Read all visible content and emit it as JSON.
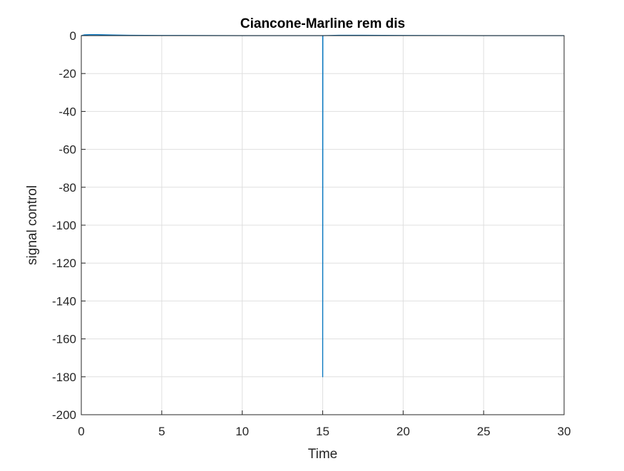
{
  "chart_data": {
    "type": "line",
    "title": "Ciancone-Marline rem dis",
    "xlabel": "Time",
    "ylabel": "signal control",
    "xlim": [
      0,
      30
    ],
    "ylim": [
      -200,
      0
    ],
    "xticks": [
      0,
      5,
      10,
      15,
      20,
      25,
      30
    ],
    "yticks": [
      0,
      -20,
      -40,
      -60,
      -80,
      -100,
      -120,
      -140,
      -160,
      -180,
      -200
    ],
    "grid": true,
    "line_color": "#0072BD",
    "series": [
      {
        "x": [
          0,
          0.2,
          0.5,
          1,
          2,
          3,
          5,
          10,
          14.99,
          15,
          15,
          15.01,
          16,
          20,
          25,
          30
        ],
        "values": [
          0,
          0.4,
          0.5,
          0.5,
          0.3,
          0.2,
          0.1,
          0,
          0,
          0,
          -180,
          0,
          0.2,
          0.1,
          0,
          0
        ]
      }
    ]
  }
}
